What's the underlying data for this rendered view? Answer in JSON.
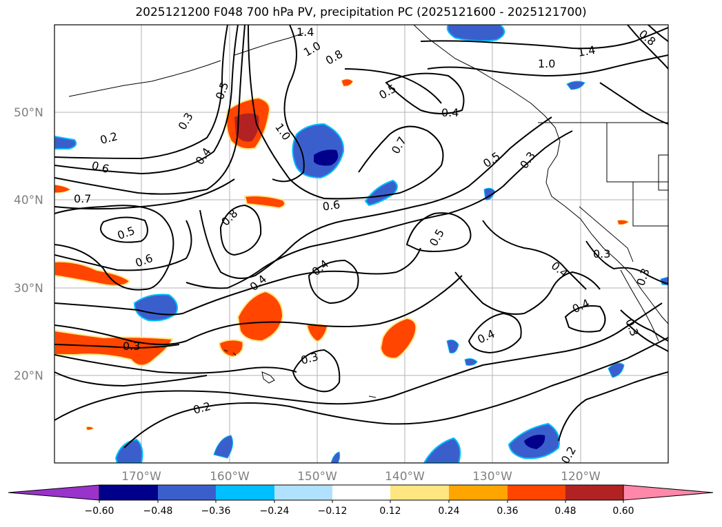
{
  "title": "2025121200 F048 700 hPa PV, precipitation PC (2025121600 - 2025121700)",
  "lat_labels": [
    "50°N",
    "40°N",
    "30°N",
    "20°N"
  ],
  "lon_labels": [
    "170°W",
    "160°W",
    "150°W",
    "140°W",
    "130°W",
    "120°W"
  ],
  "colorbar": {
    "colors": [
      "#9933cc",
      "#8a2be2",
      "#00008b",
      "#3a5fcd",
      "#00bfff",
      "#b0e2ff",
      "#ffffff",
      "#ffe680",
      "#ffa500",
      "#ff4500",
      "#b22222",
      "#ff88aa"
    ],
    "tick_labels": [
      "−0.60",
      "−0.48",
      "−0.36",
      "−0.24",
      "−0.12",
      "0.12",
      "0.24",
      "0.36",
      "0.48",
      "0.60"
    ]
  },
  "contour_labels": [
    {
      "text": "1.4"
    },
    {
      "text": "1.0"
    },
    {
      "text": "0.8"
    },
    {
      "text": "0.5"
    },
    {
      "text": "0.3"
    },
    {
      "text": "0.2"
    },
    {
      "text": "0.6"
    },
    {
      "text": "0.7"
    },
    {
      "text": "0.4"
    },
    {
      "text": "1.0"
    },
    {
      "text": "0.5"
    },
    {
      "text": "0.4"
    },
    {
      "text": "0.7"
    },
    {
      "text": "0.5"
    },
    {
      "text": "0.3"
    },
    {
      "text": "1.4"
    },
    {
      "text": "1.0"
    },
    {
      "text": "0.8"
    },
    {
      "text": "0.6"
    },
    {
      "text": "0.8"
    },
    {
      "text": "0.5"
    },
    {
      "text": "0.6"
    },
    {
      "text": "0.4"
    },
    {
      "text": "0.4"
    },
    {
      "text": "0.5"
    },
    {
      "text": "0.3"
    },
    {
      "text": "0.4"
    },
    {
      "text": "0.4"
    },
    {
      "text": "0.3"
    },
    {
      "text": "0.4"
    },
    {
      "text": "0.3"
    },
    {
      "text": "0.3"
    },
    {
      "text": "0.2"
    },
    {
      "text": "0.2"
    },
    {
      "text": "0.3"
    }
  ]
}
